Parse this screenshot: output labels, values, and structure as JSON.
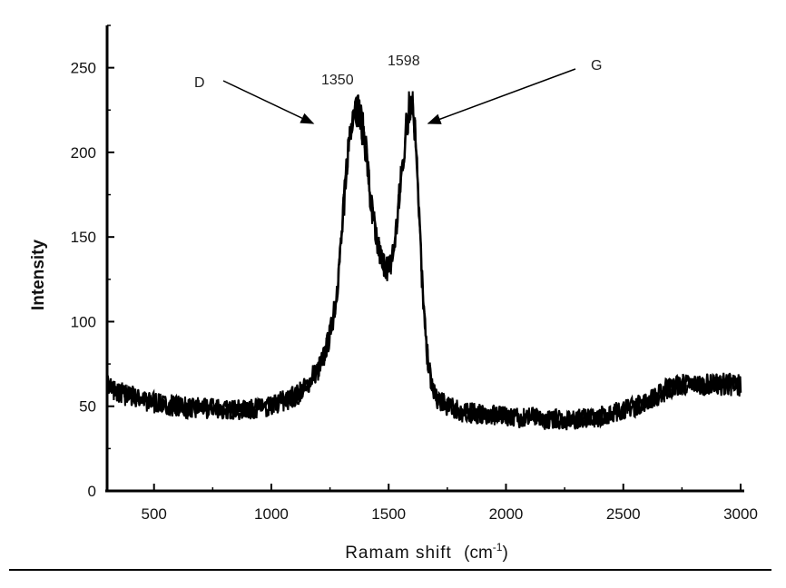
{
  "chart_data": {
    "type": "line",
    "title": "",
    "xlabel": "Ramam shift",
    "xlabel_unit_base": "(cm",
    "xlabel_unit_exp": "-1",
    "xlabel_unit_close": ")",
    "ylabel": "Intensity",
    "xlim": [
      300,
      3000
    ],
    "ylim": [
      0,
      275
    ],
    "xticks": [
      500,
      1000,
      1500,
      2000,
      2500,
      3000
    ],
    "yticks": [
      0,
      50,
      100,
      150,
      200,
      250
    ],
    "grid": false,
    "legend": "none",
    "line_color": "#000000",
    "series": [
      {
        "x": [
          300,
          350,
          400,
          450,
          500,
          550,
          600,
          650,
          700,
          750,
          800,
          850,
          900,
          950,
          1000,
          1050,
          1100,
          1150,
          1200,
          1225,
          1250,
          1275,
          1300,
          1325,
          1350,
          1375,
          1400,
          1425,
          1450,
          1475,
          1500,
          1525,
          1550,
          1575,
          1598,
          1620,
          1640,
          1660,
          1680,
          1700,
          1750,
          1800,
          1850,
          1900,
          1950,
          2000,
          2100,
          2200,
          2300,
          2400,
          2500,
          2550,
          2600,
          2650,
          2700,
          2750,
          2800,
          2850,
          2900,
          2950,
          3000
        ],
        "y": [
          62,
          58,
          56,
          54,
          52,
          51,
          50,
          49,
          49,
          49,
          48,
          48,
          48,
          49,
          50,
          53,
          56,
          62,
          72,
          80,
          92,
          112,
          150,
          200,
          228,
          225,
          205,
          170,
          145,
          135,
          132,
          145,
          180,
          215,
          235,
          200,
          130,
          85,
          65,
          55,
          50,
          47,
          46,
          45,
          45,
          44,
          43,
          42,
          42,
          44,
          48,
          50,
          53,
          57,
          61,
          63,
          63,
          63,
          63,
          63,
          62
        ]
      }
    ],
    "annotations": [
      {
        "label": "D",
        "value": "1350"
      },
      {
        "label": "G",
        "value": "1598"
      }
    ]
  }
}
